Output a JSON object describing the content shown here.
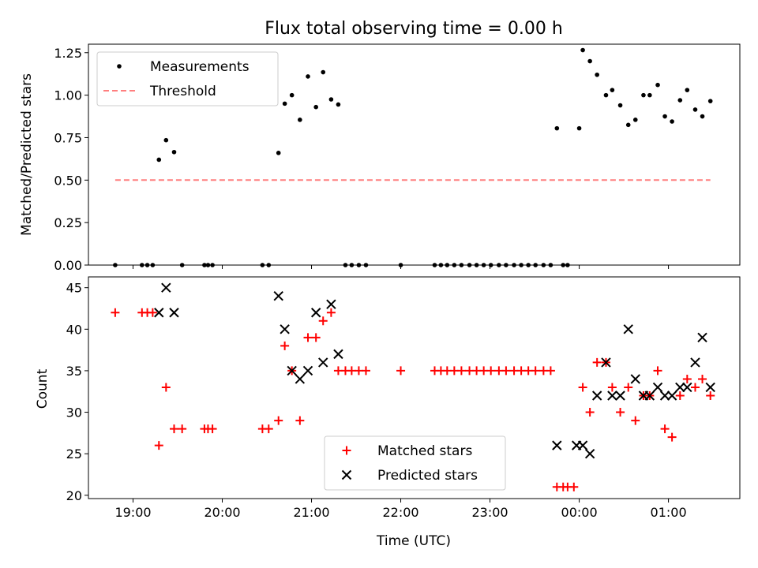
{
  "chart_data": [
    {
      "type": "scatter",
      "title": "Flux total observing time = 0.00 h",
      "xlabel": "",
      "ylabel": "Matched/Predicted stars",
      "xlim": [
        18.5,
        25.8
      ],
      "ylim": [
        0.0,
        1.3
      ],
      "yticks": [
        0.0,
        0.25,
        0.5,
        0.75,
        1.0,
        1.25
      ],
      "ytick_labels": [
        "0.00",
        "0.25",
        "0.50",
        "0.75",
        "1.00",
        "1.25"
      ],
      "xticks": [
        19,
        20,
        21,
        22,
        23,
        24,
        25
      ],
      "legend": {
        "position": "upper-left",
        "entries": [
          "Measurements",
          "Threshold"
        ]
      },
      "series": [
        {
          "name": "Measurements",
          "style": "dot",
          "color": "#000000",
          "x": [
            18.8,
            19.1,
            19.16,
            19.22,
            19.29,
            19.37,
            19.46,
            19.55,
            19.8,
            19.84,
            19.89,
            20.45,
            20.52,
            20.63,
            20.7,
            20.78,
            20.87,
            20.96,
            21.05,
            21.13,
            21.22,
            21.3,
            21.38,
            21.45,
            21.53,
            21.61,
            22.0,
            22.38,
            22.45,
            22.52,
            22.6,
            22.68,
            22.77,
            22.85,
            22.93,
            23.01,
            23.1,
            23.18,
            23.27,
            23.35,
            23.43,
            23.51,
            23.6,
            23.68,
            23.75,
            23.82,
            23.87,
            24.0,
            24.04,
            24.12,
            24.2,
            24.3,
            24.37,
            24.46,
            24.55,
            24.63,
            24.72,
            24.79,
            24.88,
            24.96,
            25.04,
            25.13,
            25.21,
            25.3,
            25.38,
            25.47
          ],
          "y": [
            0.0,
            0.0,
            0.0,
            0.0,
            0.62,
            0.735,
            0.665,
            0.0,
            0.0,
            0.0,
            0.0,
            0.0,
            0.0,
            0.66,
            0.95,
            1.0,
            0.855,
            1.11,
            0.93,
            1.135,
            0.975,
            0.945,
            0.0,
            0.0,
            0.0,
            0.0,
            0.0,
            0.0,
            0.0,
            0.0,
            0.0,
            0.0,
            0.0,
            0.0,
            0.0,
            0.0,
            0.0,
            0.0,
            0.0,
            0.0,
            0.0,
            0.0,
            0.0,
            0.0,
            0.805,
            0.0,
            0.0,
            0.805,
            1.265,
            1.2,
            1.12,
            1.0,
            1.03,
            0.94,
            0.825,
            0.855,
            1.0,
            1.0,
            1.06,
            0.875,
            0.845,
            0.97,
            1.03,
            0.915,
            0.875,
            0.965
          ]
        },
        {
          "name": "Threshold",
          "style": "dashed-line",
          "color": "#ff7f7f",
          "x": [
            18.8,
            25.47
          ],
          "y": [
            0.5,
            0.5
          ]
        }
      ]
    },
    {
      "type": "scatter",
      "title": "",
      "xlabel": "Time (UTC)",
      "ylabel": "Count",
      "xlim": [
        18.5,
        25.8
      ],
      "ylim": [
        19.6,
        46.3
      ],
      "yticks": [
        20,
        25,
        30,
        35,
        40,
        45
      ],
      "ytick_labels": [
        "20",
        "25",
        "30",
        "35",
        "40",
        "45"
      ],
      "xticks": [
        19,
        20,
        21,
        22,
        23,
        24,
        25
      ],
      "xtick_labels": [
        "19:00",
        "20:00",
        "21:00",
        "22:00",
        "23:00",
        "00:00",
        "01:00"
      ],
      "legend": {
        "position": "lower-center",
        "entries": [
          "Matched stars",
          "Predicted stars"
        ]
      },
      "series": [
        {
          "name": "Matched stars",
          "style": "plus",
          "color": "#ff0000",
          "x": [
            18.8,
            19.1,
            19.16,
            19.22,
            19.29,
            19.37,
            19.46,
            19.55,
            19.8,
            19.84,
            19.89,
            20.45,
            20.52,
            20.63,
            20.7,
            20.78,
            20.87,
            20.96,
            21.05,
            21.13,
            21.22,
            21.3,
            21.38,
            21.45,
            21.53,
            21.61,
            22.0,
            22.38,
            22.45,
            22.52,
            22.6,
            22.68,
            22.77,
            22.85,
            22.93,
            23.01,
            23.1,
            23.18,
            23.27,
            23.35,
            23.43,
            23.51,
            23.6,
            23.68,
            23.75,
            23.82,
            23.87,
            23.94,
            24.04,
            24.12,
            24.2,
            24.3,
            24.37,
            24.46,
            24.55,
            24.63,
            24.72,
            24.79,
            24.88,
            24.96,
            25.04,
            25.13,
            25.21,
            25.3,
            25.38,
            25.47
          ],
          "y": [
            42,
            42,
            42,
            42,
            26,
            33,
            28,
            28,
            28,
            28,
            28,
            28,
            28,
            29,
            38,
            35,
            29,
            39,
            39,
            41,
            42,
            35,
            35,
            35,
            35,
            35,
            35,
            35,
            35,
            35,
            35,
            35,
            35,
            35,
            35,
            35,
            35,
            35,
            35,
            35,
            35,
            35,
            35,
            35,
            21,
            21,
            21,
            21,
            33,
            30,
            36,
            36,
            33,
            30,
            33,
            29,
            32,
            32,
            35,
            28,
            27,
            32,
            34,
            33,
            34,
            32
          ]
        },
        {
          "name": "Predicted stars",
          "style": "x",
          "color": "#000000",
          "x": [
            19.29,
            19.37,
            19.46,
            20.63,
            20.7,
            20.78,
            20.87,
            20.96,
            21.05,
            21.13,
            21.22,
            21.3,
            23.75,
            23.97,
            24.04,
            24.12,
            24.2,
            24.3,
            24.37,
            24.46,
            24.55,
            24.63,
            24.72,
            24.79,
            24.88,
            24.96,
            25.04,
            25.13,
            25.21,
            25.3,
            25.38,
            25.47
          ],
          "y": [
            42,
            45,
            42,
            44,
            40,
            35,
            34,
            35,
            42,
            36,
            43,
            37,
            26,
            26,
            26,
            25,
            32,
            36,
            32,
            32,
            40,
            34,
            32,
            32,
            33,
            32,
            32,
            33,
            33,
            36,
            39,
            33
          ]
        }
      ]
    }
  ]
}
